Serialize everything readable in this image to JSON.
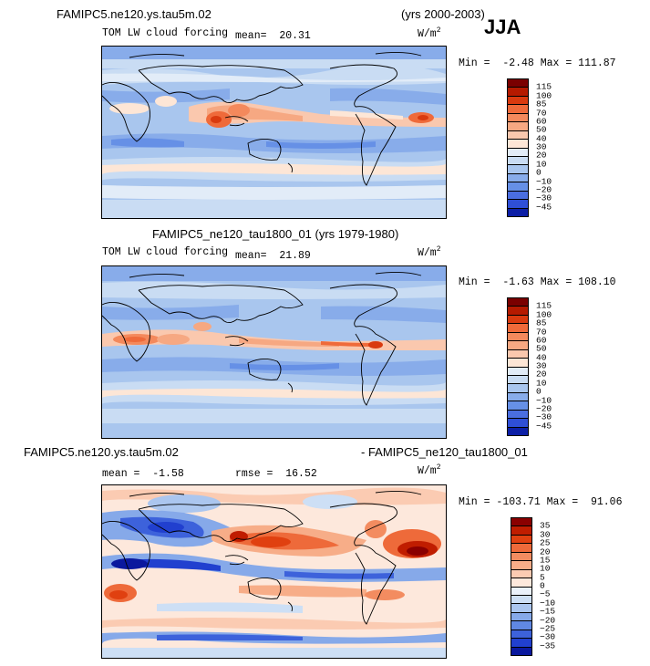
{
  "season": "JJA",
  "top_title": "FAMIPC5.ne120.ys.tau5m.02",
  "top_years": "(yrs 2000-2003)",
  "panels": [
    {
      "variable": "TOM LW cloud forcing",
      "mean_label": "mean=",
      "mean_value": "20.31",
      "units_base": "W/m",
      "units_exp": "2",
      "min_label": "Min =",
      "min_value": "-2.48",
      "max_label": "Max =",
      "max_value": "111.87",
      "colorbar_labels": [
        "115",
        "100",
        "85",
        "70",
        "60",
        "50",
        "40",
        "30",
        "20",
        "10",
        "0",
        "−10",
        "−20",
        "−30",
        "−45"
      ],
      "colorbar_colors": [
        "#7a0000",
        "#b51a00",
        "#d93a0f",
        "#ef6a3a",
        "#f4895c",
        "#f6a882",
        "#fac8ae",
        "#fde6d6",
        "#e2ecf8",
        "#c9dcf3",
        "#a9c6ee",
        "#88acea",
        "#6690e6",
        "#4a6ee0",
        "#2f4fd6",
        "#0c1fa6"
      ]
    },
    {
      "title": "FAMIPC5_ne120_tau1800_01 (yrs 1979-1980)",
      "variable": "TOM LW cloud forcing",
      "mean_label": "mean=",
      "mean_value": "21.89",
      "units_base": "W/m",
      "units_exp": "2",
      "min_label": "Min =",
      "min_value": "-1.63",
      "max_label": "Max =",
      "max_value": "108.10",
      "colorbar_labels": [
        "115",
        "100",
        "85",
        "70",
        "60",
        "50",
        "40",
        "30",
        "20",
        "10",
        "0",
        "−10",
        "−20",
        "−30",
        "−45"
      ],
      "colorbar_colors": [
        "#7a0000",
        "#b51a00",
        "#d93a0f",
        "#ef6a3a",
        "#f4895c",
        "#f6a882",
        "#fac8ae",
        "#fde6d6",
        "#e2ecf8",
        "#c9dcf3",
        "#a9c6ee",
        "#88acea",
        "#6690e6",
        "#4a6ee0",
        "#2f4fd6",
        "#0c1fa6"
      ]
    },
    {
      "title_left": "FAMIPC5.ne120.ys.tau5m.02",
      "title_right": "- FAMIPC5_ne120_tau1800_01",
      "mean_label": "mean =",
      "mean_value": "-1.58",
      "rmse_label": "rmse =",
      "rmse_value": "16.52",
      "units_base": "W/m",
      "units_exp": "2",
      "min_label": "Min =",
      "min_value": "-103.71",
      "max_label": "Max =",
      "max_value": "91.06",
      "colorbar_labels": [
        "35",
        "30",
        "25",
        "20",
        "15",
        "10",
        "5",
        "0",
        "−5",
        "−10",
        "−15",
        "−20",
        "−25",
        "−30",
        "−35"
      ],
      "colorbar_colors": [
        "#8a0000",
        "#c01d00",
        "#e04010",
        "#ee6a3a",
        "#f38c60",
        "#f7ad88",
        "#fbcbb2",
        "#fde8dc",
        "#eaf1fb",
        "#cddff5",
        "#abc6ef",
        "#86a9e9",
        "#6088e3",
        "#3d62db",
        "#2140cf",
        "#0a189e"
      ]
    }
  ]
}
